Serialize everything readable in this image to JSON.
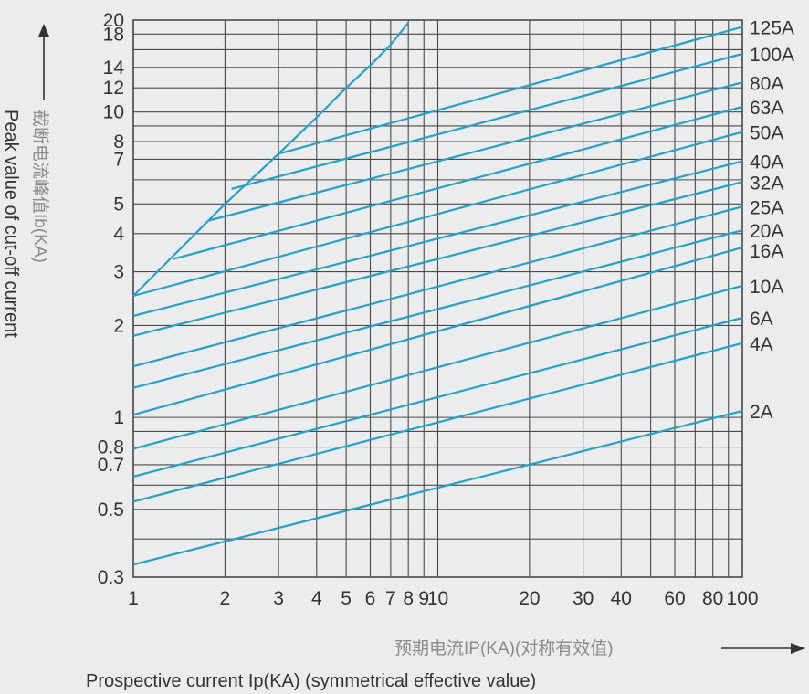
{
  "chart_data": {
    "type": "line",
    "x_scale": "log",
    "y_scale": "log",
    "xlim": [
      1,
      100
    ],
    "ylim": [
      0.3,
      20
    ],
    "grid": true,
    "xlabel_cn": "预期电流IP(KA)(对称有效值)",
    "xlabel_en": "Prospective current Ip(KA) (symmetrical effective value)",
    "ylabel_cn": "截断电流峰值Ib(KA)",
    "ylabel_en": "Peak value of cut-off current",
    "x_ticks": [
      {
        "value": 1,
        "label": "1"
      },
      {
        "value": 2,
        "label": "2"
      },
      {
        "value": 3,
        "label": "3"
      },
      {
        "value": 4,
        "label": "4"
      },
      {
        "value": 5,
        "label": "5"
      },
      {
        "value": 6,
        "label": "6"
      },
      {
        "value": 7,
        "label": "7"
      },
      {
        "value": 8,
        "label": "8"
      },
      {
        "value": 9,
        "label": "9"
      },
      {
        "value": 10,
        "label": "10"
      },
      {
        "value": 20,
        "label": "20"
      },
      {
        "value": 30,
        "label": "30"
      },
      {
        "value": 40,
        "label": "40"
      },
      {
        "value": 60,
        "label": "60"
      },
      {
        "value": 80,
        "label": "80"
      },
      {
        "value": 100,
        "label": "100"
      }
    ],
    "x_gridlines": [
      1,
      2,
      3,
      4,
      5,
      6,
      7,
      8,
      9,
      10,
      20,
      30,
      40,
      50,
      60,
      70,
      80,
      90,
      100
    ],
    "y_ticks": [
      {
        "value": 20,
        "label": "20"
      },
      {
        "value": 18,
        "label": "18"
      },
      {
        "value": 14,
        "label": "14"
      },
      {
        "value": 12,
        "label": "12"
      },
      {
        "value": 10,
        "label": "10"
      },
      {
        "value": 8,
        "label": "8"
      },
      {
        "value": 7,
        "label": "7"
      },
      {
        "value": 5,
        "label": "5"
      },
      {
        "value": 4,
        "label": "4"
      },
      {
        "value": 3,
        "label": "3"
      },
      {
        "value": 2,
        "label": "2"
      },
      {
        "value": 1,
        "label": "1"
      },
      {
        "value": 0.8,
        "label": "0.8"
      },
      {
        "value": 0.7,
        "label": "0.7"
      },
      {
        "value": 0.5,
        "label": "0.5"
      },
      {
        "value": 0.3,
        "label": "0.3"
      }
    ],
    "y_gridlines": [
      20,
      18,
      16,
      14,
      12,
      10,
      9,
      8,
      7,
      6,
      5,
      4,
      3,
      2,
      1,
      0.9,
      0.8,
      0.7,
      0.6,
      0.5,
      0.4,
      0.3
    ],
    "limit_line": [
      [
        1,
        2.5
      ],
      [
        2,
        5.0
      ],
      [
        3,
        7.3
      ],
      [
        4,
        9.6
      ],
      [
        5,
        12.0
      ],
      [
        6,
        14.2
      ],
      [
        7,
        16.6
      ],
      [
        8,
        19.6
      ]
    ],
    "series": [
      {
        "name": "2A",
        "points": [
          [
            1,
            0.33
          ],
          [
            100,
            1.05
          ]
        ]
      },
      {
        "name": "4A",
        "points": [
          [
            1,
            0.53
          ],
          [
            100,
            1.75
          ]
        ]
      },
      {
        "name": "6A",
        "points": [
          [
            1,
            0.64
          ],
          [
            100,
            2.12
          ]
        ]
      },
      {
        "name": "10A",
        "points": [
          [
            1,
            0.79
          ],
          [
            100,
            2.7
          ]
        ]
      },
      {
        "name": "16A",
        "points": [
          [
            1,
            1.02
          ],
          [
            100,
            3.6
          ]
        ]
      },
      {
        "name": "20A",
        "points": [
          [
            1,
            1.25
          ],
          [
            100,
            4.1
          ]
        ]
      },
      {
        "name": "25A",
        "points": [
          [
            1,
            1.47
          ],
          [
            100,
            4.9
          ]
        ]
      },
      {
        "name": "32A",
        "points": [
          [
            1,
            1.85
          ],
          [
            100,
            5.9
          ]
        ]
      },
      {
        "name": "40A",
        "points": [
          [
            1,
            2.15
          ],
          [
            100,
            6.9
          ]
        ]
      },
      {
        "name": "50A",
        "points": [
          [
            1,
            2.5
          ],
          [
            100,
            8.6
          ]
        ]
      },
      {
        "name": "63A",
        "points": [
          [
            1.35,
            3.3
          ],
          [
            100,
            10.4
          ]
        ]
      },
      {
        "name": "80A",
        "points": [
          [
            1.75,
            4.4
          ],
          [
            100,
            12.5
          ]
        ]
      },
      {
        "name": "100A",
        "points": [
          [
            2.1,
            5.6
          ],
          [
            100,
            15.5
          ]
        ]
      },
      {
        "name": "125A",
        "points": [
          [
            3,
            7.3
          ],
          [
            100,
            19.0
          ]
        ]
      }
    ],
    "colors": {
      "line": "#2a9fc4",
      "grid": "#4a4a4a",
      "text": "#333333",
      "background": "#ebeced"
    }
  }
}
